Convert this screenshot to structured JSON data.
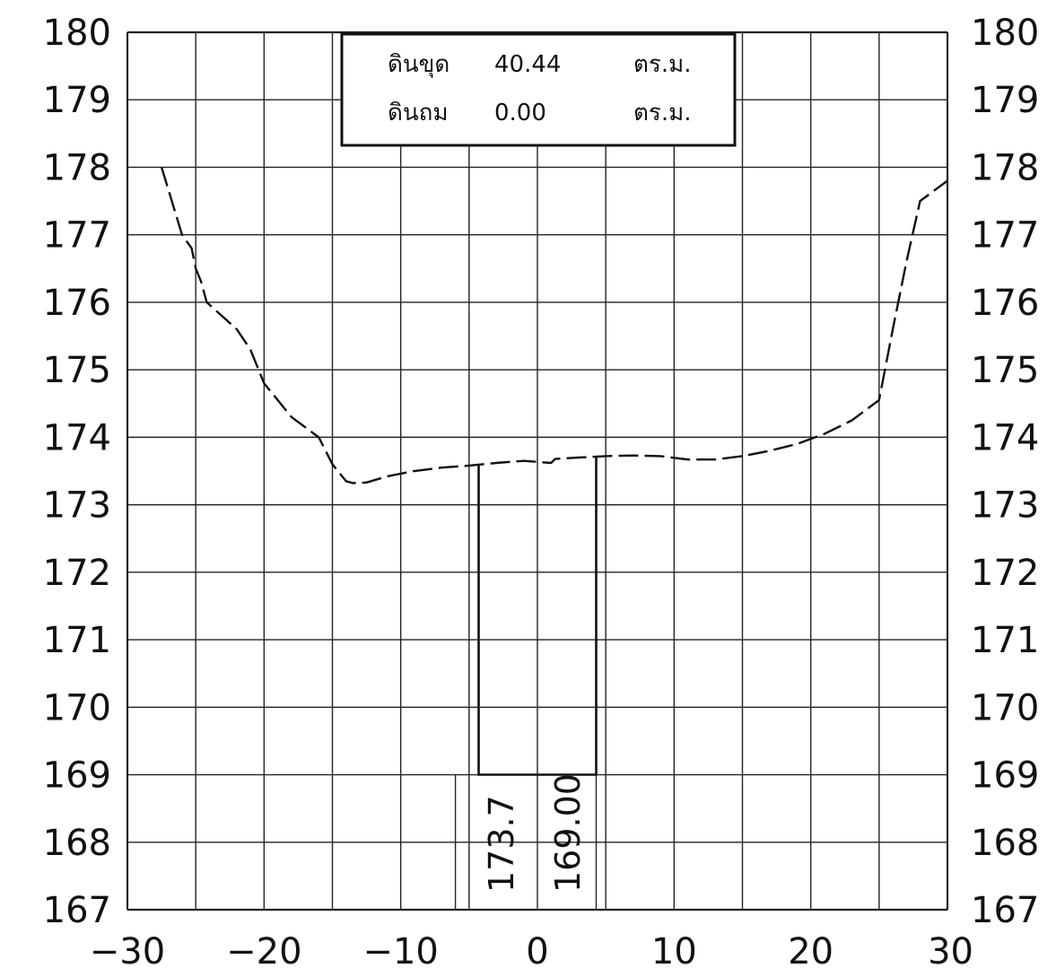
{
  "chart_data": {
    "type": "line",
    "title": "",
    "xlabel": "",
    "ylabel": "",
    "xlim": [
      -30,
      30
    ],
    "ylim": [
      167,
      180
    ],
    "grid": true,
    "x_ticks": [
      "-30",
      "-20",
      "-10",
      "0",
      "10",
      "20",
      "30"
    ],
    "y_ticks": [
      "167",
      "168",
      "169",
      "170",
      "171",
      "172",
      "173",
      "174",
      "175",
      "176",
      "177",
      "178",
      "179",
      "180"
    ],
    "colors": {
      "line": "#111111",
      "grid": "#222222"
    },
    "series": [
      {
        "x": [
          -27.5,
          -26,
          -25.3,
          -25,
          -24.6,
          -24.2,
          -22,
          -21,
          -20,
          -18,
          -16,
          -15,
          -14,
          -13.5,
          -12.5,
          -11,
          -9,
          -7,
          -5,
          -3,
          -1,
          1,
          1.3,
          3,
          5,
          7,
          9,
          11,
          13,
          15,
          17,
          19,
          21,
          23,
          25,
          26,
          27,
          28,
          30
        ],
        "y": [
          178,
          177,
          176.8,
          176.5,
          176.3,
          176,
          175.6,
          175.3,
          174.8,
          174.3,
          174.0,
          173.6,
          173.35,
          173.32,
          173.33,
          173.42,
          173.5,
          173.55,
          173.58,
          173.62,
          173.65,
          173.62,
          173.68,
          173.7,
          173.72,
          173.73,
          173.72,
          173.67,
          173.67,
          173.72,
          173.8,
          173.9,
          174.05,
          174.25,
          174.55,
          175.6,
          176.6,
          177.5,
          177.8
        ]
      }
    ],
    "structure": {
      "x_left": -4.3,
      "x_right": 4.3,
      "bottom": 169,
      "left_top": 173.6,
      "right_top": 173.7
    },
    "legend_box": {
      "rows": [
        {
          "label": "ดินขุด",
          "value": "40.44",
          "unit": "ตร.ม."
        },
        {
          "label": "ดินถม",
          "value": "0.00",
          "unit": "ตร.ม."
        }
      ]
    },
    "vertical_labels": [
      "173.7",
      "169.00"
    ]
  }
}
